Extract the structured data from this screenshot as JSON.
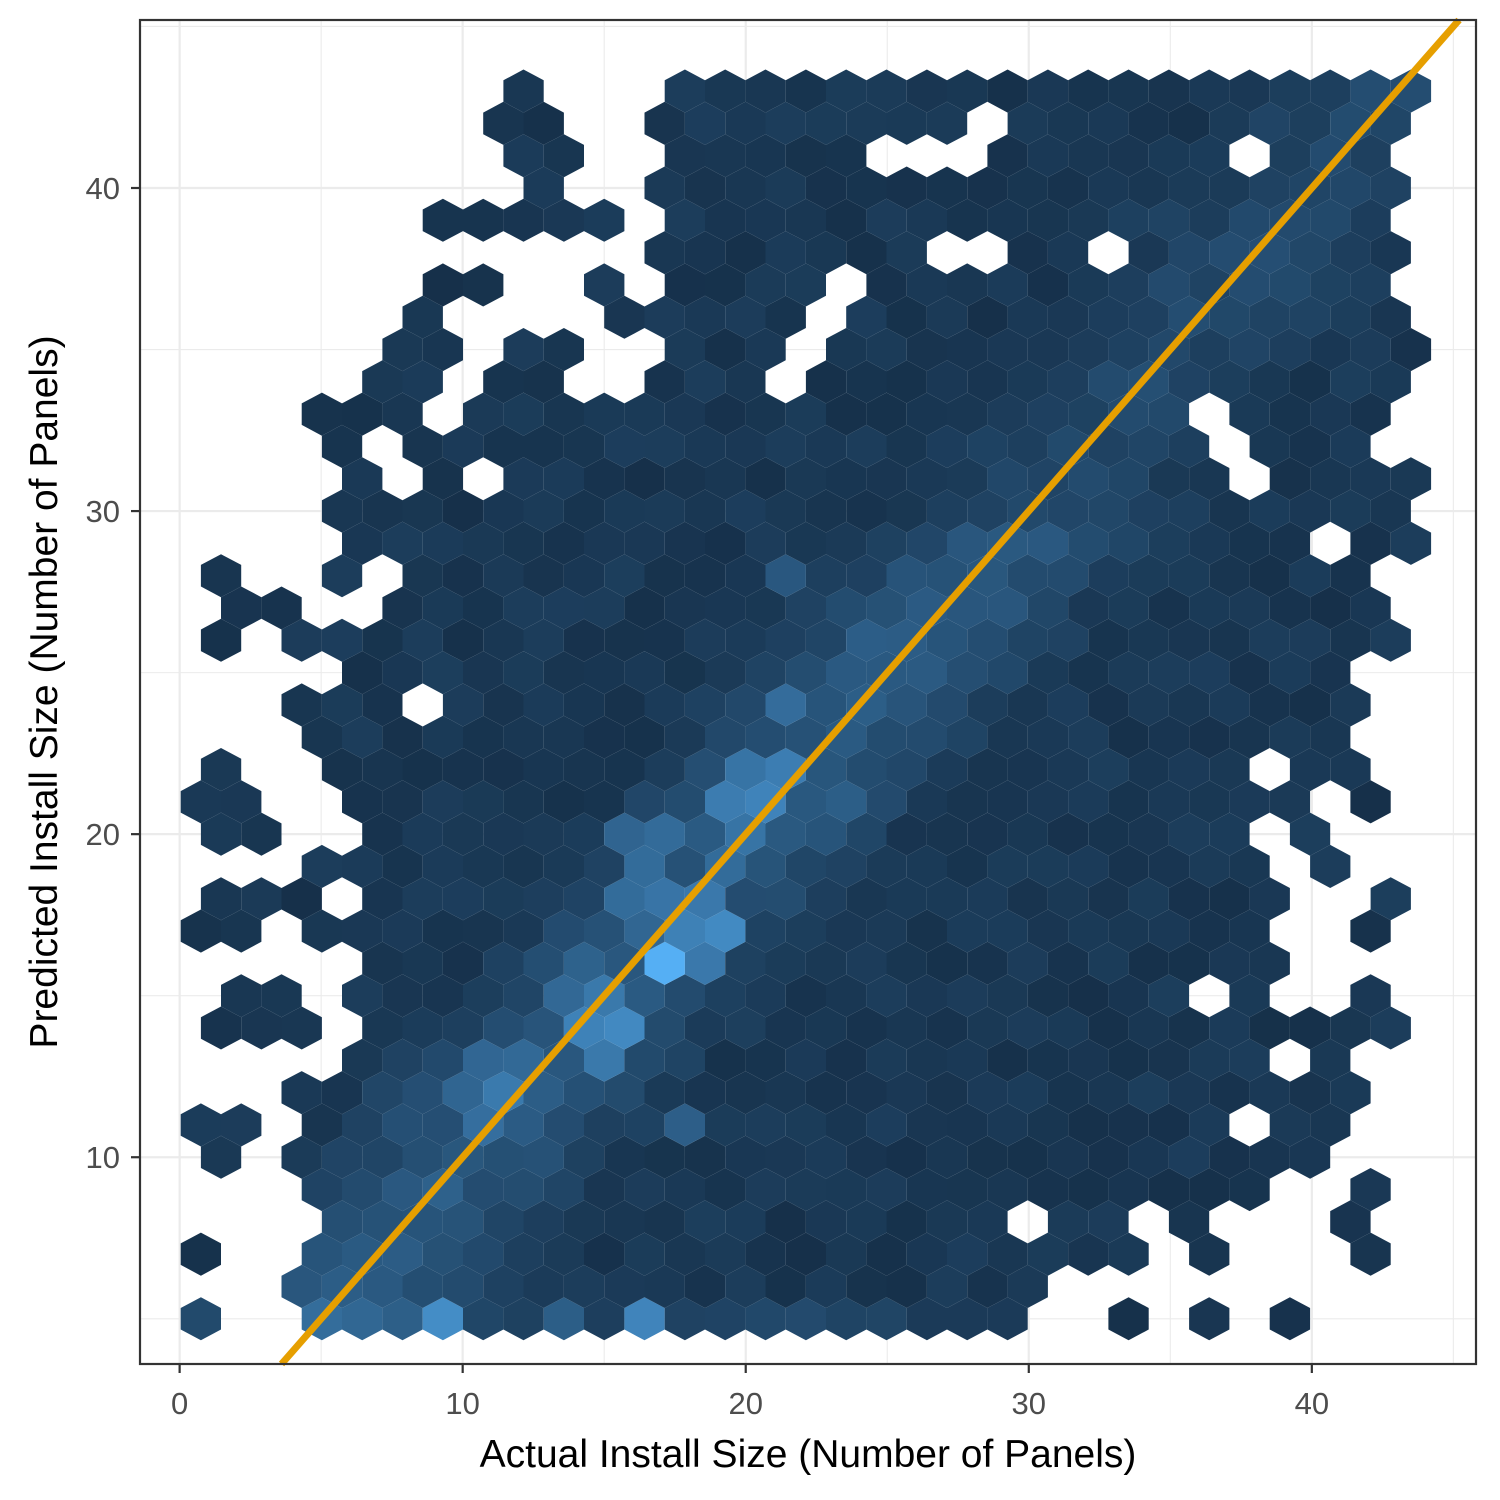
{
  "chart_data": {
    "type": "hexbin",
    "xlabel": "Actual Install Size (Number of Panels)",
    "ylabel": "Predicted Install Size (Number of Panels)",
    "xlim": [
      -1.4,
      45.8
    ],
    "ylim": [
      3.6,
      45.2
    ],
    "x_ticks": [
      0,
      10,
      20,
      30,
      40
    ],
    "y_ticks": [
      10,
      20,
      30,
      40
    ],
    "x_tick_labels": [
      "0",
      "10",
      "20",
      "30",
      "40"
    ],
    "y_tick_labels": [
      "10",
      "20",
      "30",
      "40"
    ],
    "grid": true,
    "legend": "none",
    "hex_bins": {
      "x_start": 0.75,
      "x_step": 1.425,
      "y_start": 5.0,
      "y_step": 1.0,
      "x_bins": 31,
      "y_rows": 39
    },
    "reference_line": {
      "slope": 1,
      "intercept": 0,
      "color": "#e69f00"
    },
    "colors": {
      "low": "#132b43",
      "high": "#56b1f7",
      "line": "#e69f00",
      "grid": "#ebebeb",
      "frame": "#333333"
    },
    "hotspots": [
      [
        9.4,
        5.0,
        0.75
      ],
      [
        16.6,
        5.0,
        0.7
      ],
      [
        8.0,
        5.0,
        0.4
      ],
      [
        13.4,
        5.0,
        0.4
      ],
      [
        17.2,
        16.0,
        1.0
      ],
      [
        15.1,
        14.0,
        0.85
      ],
      [
        18.7,
        17.0,
        0.85
      ],
      [
        20.1,
        21.0,
        0.8
      ],
      [
        21.6,
        22.0,
        0.65
      ],
      [
        16.6,
        18.0,
        0.65
      ],
      [
        16.6,
        19.6,
        0.6
      ],
      [
        11.5,
        12.3,
        0.65
      ],
      [
        10.8,
        11.5,
        0.6
      ],
      [
        14.4,
        15.0,
        0.6
      ],
      [
        19.4,
        19.0,
        0.5
      ],
      [
        24.4,
        25.5,
        0.45
      ],
      [
        26.0,
        27.0,
        0.4
      ],
      [
        23.0,
        21.0,
        0.45
      ],
      [
        18.0,
        11.0,
        0.4
      ],
      [
        21.5,
        24.0,
        0.5
      ],
      [
        29.0,
        27.0,
        0.35
      ],
      [
        21.6,
        28.0,
        0.35
      ]
    ],
    "empty_bins": [
      [
        28.0,
        41.5
      ],
      [
        25.1,
        41.0
      ],
      [
        26.5,
        41.0
      ],
      [
        38.0,
        41.0
      ],
      [
        27.8,
        38.0
      ],
      [
        32.2,
        38.0
      ],
      [
        23.0,
        36.5
      ],
      [
        10.8,
        35.5
      ],
      [
        14.4,
        34.5
      ],
      [
        15.8,
        34.5
      ],
      [
        21.5,
        34.5
      ],
      [
        9.4,
        33.5
      ],
      [
        36.5,
        32.5
      ],
      [
        37.2,
        31.0
      ],
      [
        10.8,
        31.0
      ],
      [
        40.0,
        29.0
      ],
      [
        7.3,
        28.0
      ],
      [
        43.0,
        24.5
      ],
      [
        8.7,
        23.6
      ],
      [
        38.5,
        22.0
      ],
      [
        38.0,
        20.0
      ],
      [
        38.7,
        17.0
      ],
      [
        35.8,
        15.0
      ],
      [
        29.8,
        8.0
      ]
    ],
    "line_bins": [
      [
        12.3,
        43.5
      ],
      [
        11.6,
        41.5
      ],
      [
        13.0,
        41.5
      ],
      [
        12.3,
        40.0
      ],
      [
        16.6,
        40.0
      ],
      [
        9.4,
        39.0
      ],
      [
        10.8,
        39.0
      ],
      [
        12.3,
        39.0
      ],
      [
        13.7,
        39.0
      ],
      [
        15.1,
        39.0
      ],
      [
        16.6,
        38.0
      ],
      [
        9.4,
        37.0
      ],
      [
        10.8,
        37.0
      ],
      [
        14.4,
        37.0
      ],
      [
        15.1,
        36.0
      ],
      [
        8.7,
        36.0
      ],
      [
        7.3,
        34.5
      ],
      [
        8.7,
        34.5
      ],
      [
        5.8,
        32.5
      ],
      [
        6.5,
        31.0
      ],
      [
        7.3,
        33.5
      ],
      [
        5.8,
        28.0
      ],
      [
        6.5,
        29.5
      ],
      [
        1.5,
        28.0
      ],
      [
        2.2,
        27.0
      ],
      [
        3.6,
        27.0
      ],
      [
        1.5,
        26.0
      ],
      [
        4.4,
        26.0
      ],
      [
        5.8,
        26.0
      ],
      [
        4.4,
        23.6
      ],
      [
        6.5,
        24.5
      ],
      [
        5.8,
        22.5
      ],
      [
        1.5,
        21.5
      ],
      [
        2.2,
        20.5
      ],
      [
        4.4,
        19.4
      ],
      [
        5.8,
        19.4
      ],
      [
        2.2,
        18.3
      ],
      [
        3.6,
        18.3
      ],
      [
        1.5,
        17.0
      ],
      [
        5.1,
        17.0
      ],
      [
        2.9,
        15.0
      ],
      [
        3.6,
        14.0
      ],
      [
        4.4,
        14.0
      ],
      [
        0.8,
        14.0
      ],
      [
        1.5,
        10.5
      ],
      [
        5.1,
        12.0
      ],
      [
        5.1,
        9.4
      ],
      [
        0.8,
        7.0
      ],
      [
        5.8,
        7.2
      ],
      [
        4.4,
        6.2
      ],
      [
        0.8,
        5.0
      ],
      [
        5.1,
        5.0
      ],
      [
        33.6,
        5.0
      ],
      [
        36.5,
        5.0
      ],
      [
        39.4,
        5.0
      ],
      [
        37.0,
        7.0
      ],
      [
        41.6,
        8.4
      ],
      [
        42.3,
        7.2
      ],
      [
        33.0,
        7.2
      ],
      [
        35.8,
        8.4
      ],
      [
        38.0,
        9.4
      ],
      [
        40.0,
        10.5
      ],
      [
        39.4,
        12.3
      ],
      [
        40.8,
        12.3
      ],
      [
        40.8,
        13.5
      ],
      [
        43.0,
        13.8
      ],
      [
        41.6,
        14.5
      ],
      [
        39.4,
        14.0
      ],
      [
        42.3,
        17.0
      ],
      [
        43.0,
        18.0
      ],
      [
        40.8,
        19.0
      ],
      [
        41.6,
        21.5
      ],
      [
        42.3,
        23.6
      ],
      [
        40.8,
        24.5
      ],
      [
        40.0,
        22.5
      ],
      [
        42.3,
        26.0
      ],
      [
        43.0,
        29.0
      ],
      [
        42.3,
        30.0
      ],
      [
        43.0,
        31.0
      ],
      [
        42.3,
        33.5
      ],
      [
        43.0,
        34.5
      ],
      [
        42.3,
        36.0
      ],
      [
        43.0,
        38.0
      ],
      [
        43.0,
        40.0
      ],
      [
        42.3,
        42.0
      ],
      [
        43.0,
        43.5
      ],
      [
        41.6,
        43.5
      ],
      [
        40.2,
        43.5
      ],
      [
        38.7,
        43.5
      ],
      [
        37.3,
        42.5
      ],
      [
        35.8,
        43.5
      ],
      [
        34.4,
        43.0
      ],
      [
        32.9,
        43.5
      ],
      [
        31.5,
        42.5
      ],
      [
        30.0,
        43.0
      ],
      [
        28.6,
        43.5
      ],
      [
        27.2,
        43.5
      ],
      [
        25.7,
        43.5
      ],
      [
        24.3,
        43.5
      ],
      [
        22.8,
        43.5
      ],
      [
        21.4,
        43.5
      ],
      [
        20.0,
        42.5
      ],
      [
        18.5,
        42.0
      ],
      [
        18.5,
        41.0
      ],
      [
        19.9,
        41.0
      ],
      [
        21.4,
        41.0
      ],
      [
        19.2,
        40.0
      ],
      [
        17.8,
        39.5
      ],
      [
        20.6,
        39.5
      ],
      [
        37.3,
        39.5
      ]
    ]
  }
}
